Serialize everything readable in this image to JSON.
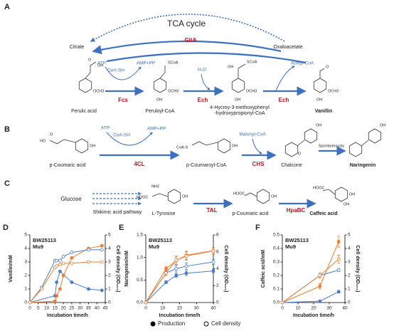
{
  "pathway_a": {
    "letter": "A",
    "cycle": "TCA cycle",
    "citrate": "Citrate",
    "oxaloacetate": "Oxaloacetate",
    "cycle_enzyme": "GltA",
    "cofactors": [
      "ATP",
      "CoA-SH",
      "AMP+PP",
      "H₂O",
      "Acetyl-CoA"
    ],
    "enzymes": [
      "Fcs",
      "Ech",
      "Ech"
    ],
    "compounds": [
      "Ferulic acid",
      "Feruloyl-CoA",
      [
        "4-Hycroy-3-methoxyphenyl",
        "-hydroxypropionyl-CoA"
      ],
      "Vanillin"
    ],
    "groups": [
      "O",
      "OH",
      "OCH3",
      "SCoA",
      "OH",
      "OCH3",
      "OH",
      "SCoA",
      "OH",
      "OCH3",
      "O",
      "OH",
      "OCH3"
    ]
  },
  "pathway_b": {
    "letter": "B",
    "cofactors": [
      "ATP",
      "CoA-SH",
      "AMP+PP",
      "Malonyl-CoA"
    ],
    "enzymes": [
      "4CL",
      "CHS"
    ],
    "step": "Spontaneously",
    "compounds": [
      "p-Coumaric acid",
      "p-Coumaroyl-CoA",
      "Chalcone",
      "Naringenin"
    ],
    "groups": [
      "HO",
      "O",
      "OH",
      "CoA-S",
      "OH",
      "OH",
      "O",
      "OH"
    ]
  },
  "pathway_c": {
    "letter": "C",
    "source": "Glucose",
    "route": "Shikimic acid pathway",
    "enzymes": [
      "TAL",
      "HpaBC"
    ],
    "compounds": [
      "L-Tyrosine",
      "p-Coumaric acid",
      "Caffeic acid"
    ],
    "groups": [
      "HOOC",
      "NH2",
      "OH",
      "HOOC",
      "OH",
      "HOOC",
      "OH",
      "OH"
    ]
  },
  "legend": [
    {
      "label": "Production",
      "marker": "filled"
    },
    {
      "label": "Cell density",
      "marker": "open"
    }
  ],
  "chart_data": [
    {
      "type": "line",
      "panel": "D",
      "xlabel": "Incubation time/h",
      "ylabel": "Vanillin/mM",
      "y2label": "Cell density (OD₆₀₀)",
      "xlim": [
        0,
        45
      ],
      "xticks": [
        0,
        5,
        10,
        15,
        20,
        25,
        30,
        35,
        40,
        45
      ],
      "ylim": [
        0,
        5
      ],
      "yticks": [
        0,
        1,
        2,
        3,
        4,
        5
      ],
      "y2lim": [
        0,
        5
      ],
      "y2ticks": [
        0,
        1,
        2,
        3,
        4,
        5
      ],
      "strains": [
        {
          "name": "BW25113",
          "color": "#4a7cc9"
        },
        {
          "name": "Mu9",
          "color": "#ed7d31"
        }
      ],
      "series": [
        {
          "strain": 0,
          "marker": "filled",
          "x": [
            0,
            15,
            16,
            18,
            25,
            35,
            43
          ],
          "values": [
            0,
            0.5,
            1.5,
            2.3,
            1.5,
            1.0,
            0.9
          ]
        },
        {
          "strain": 1,
          "marker": "filled",
          "x": [
            0,
            15,
            16,
            18,
            20,
            25,
            35,
            43
          ],
          "values": [
            0,
            0.1,
            0.5,
            1.0,
            2.0,
            3.3,
            4.0,
            4.2
          ]
        },
        {
          "strain": 0,
          "marker": "open",
          "axis": "y2",
          "x": [
            0,
            7,
            15,
            16,
            18,
            20,
            25,
            35,
            43
          ],
          "values": [
            0,
            1.1,
            3.1,
            3.1,
            3.1,
            3.4,
            3.7,
            3.9,
            3.9
          ]
        },
        {
          "strain": 1,
          "marker": "open",
          "axis": "y2",
          "x": [
            0,
            7,
            15,
            16,
            18,
            20,
            25,
            35,
            43
          ],
          "values": [
            0,
            1.0,
            2.6,
            2.7,
            2.8,
            2.9,
            2.9,
            3.0,
            3.0
          ]
        }
      ]
    },
    {
      "type": "line",
      "panel": "E",
      "xlabel": "Incubation time/h",
      "ylabel": "Naringenin/mM",
      "y2label": "Cell density (OD₆₀₀)",
      "xlim": [
        0,
        40
      ],
      "xticks": [
        0,
        10,
        20,
        30,
        40
      ],
      "ylim": [
        0,
        1.5
      ],
      "yticks": [
        {
          "value": 0,
          "label": "0.0"
        },
        0.5,
        {
          "value": 1,
          "label": "1.0"
        },
        1.5
      ],
      "y2lim": [
        0,
        8
      ],
      "y2ticks": [
        0,
        2,
        4,
        6,
        8
      ],
      "strains": [
        {
          "name": "BW25113",
          "color": "#4a7cc9"
        },
        {
          "name": "Mu9",
          "color": "#ed7d31"
        }
      ],
      "series": [
        {
          "strain": 0,
          "marker": "filled",
          "x": [
            0,
            12,
            18,
            24,
            40
          ],
          "values": [
            0,
            0.45,
            0.6,
            0.65,
            0.7
          ],
          "errors": [
            0,
            0.03,
            0.04,
            0.05,
            0.04
          ]
        },
        {
          "strain": 1,
          "marker": "filled",
          "x": [
            0,
            12,
            18,
            24,
            40
          ],
          "values": [
            0,
            0.75,
            0.93,
            1.05,
            1.15
          ],
          "errors": [
            0,
            0.05,
            0.08,
            0.09,
            0.06
          ]
        },
        {
          "strain": 0,
          "marker": "open",
          "axis": "y2",
          "x": [
            0,
            12,
            18,
            24,
            40
          ],
          "values": [
            0,
            3.5,
            4.0,
            4.3,
            4.8
          ],
          "errors": [
            0,
            0.3,
            0.4,
            0.4,
            0.3
          ]
        },
        {
          "strain": 1,
          "marker": "open",
          "axis": "y2",
          "x": [
            0,
            12,
            18,
            24,
            40
          ],
          "values": [
            0,
            3.5,
            5.0,
            5.5,
            6.1
          ],
          "errors": [
            0,
            0.3,
            0.5,
            0.5,
            0.4
          ]
        }
      ]
    },
    {
      "type": "line",
      "panel": "F",
      "xlabel": "Incubation time/h",
      "ylabel": "Caffeic acid/mM",
      "y2label": "Cell density (OD₆₀₀)",
      "xlim": [
        0,
        40
      ],
      "xticks": [
        0,
        10,
        20,
        30,
        40
      ],
      "ylim": [
        0,
        0.5
      ],
      "yticks": [
        {
          "value": 0,
          "label": "0.0"
        },
        0.1,
        0.2,
        0.3,
        0.4,
        0.5
      ],
      "y2lim": [
        0,
        5
      ],
      "y2ticks": [
        0,
        1,
        2,
        3,
        4,
        5
      ],
      "strains": [
        {
          "name": "BW25113",
          "color": "#4a7cc9"
        },
        {
          "name": "Mu9",
          "color": "#ed7d31"
        }
      ],
      "series": [
        {
          "strain": 0,
          "marker": "filled",
          "x": [
            0,
            24,
            36
          ],
          "values": [
            0,
            0.01,
            0.08
          ],
          "errors": [
            0,
            0.005,
            0.01
          ]
        },
        {
          "strain": 1,
          "marker": "filled",
          "x": [
            0,
            24,
            36
          ],
          "values": [
            0,
            0.12,
            0.45
          ],
          "errors": [
            0,
            0.02,
            0.04
          ]
        },
        {
          "strain": 0,
          "marker": "open",
          "axis": "y2",
          "x": [
            0,
            24,
            36
          ],
          "values": [
            0,
            2.0,
            2.4
          ],
          "errors": [
            0,
            0.1,
            0.1
          ]
        },
        {
          "strain": 1,
          "marker": "open",
          "axis": "y2",
          "x": [
            0,
            24,
            36
          ],
          "values": [
            0,
            2.0,
            3.2
          ],
          "errors": [
            0,
            0.2,
            0.3
          ]
        }
      ]
    }
  ]
}
